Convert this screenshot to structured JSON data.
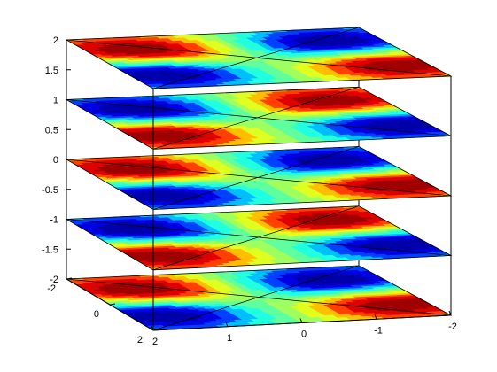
{
  "chart_data": {
    "type": "heatmap",
    "subtype": "stacked 3-D contour slices",
    "colormap": "jet",
    "colormap_stops": [
      "#00008f",
      "#0000ff",
      "#00ffff",
      "#7fff7f",
      "#ffff00",
      "#ff0000",
      "#7f0000"
    ],
    "grid": false,
    "box": true,
    "z_ticks": [
      {
        "value": 2,
        "label": "2"
      },
      {
        "value": 1.5,
        "label": "1.5"
      },
      {
        "value": 1,
        "label": "1"
      },
      {
        "value": 0.5,
        "label": "0.5"
      },
      {
        "value": 0,
        "label": "0"
      },
      {
        "value": -0.5,
        "label": "-0.5"
      },
      {
        "value": -1,
        "label": "-1"
      },
      {
        "value": -1.5,
        "label": "-1.5"
      },
      {
        "value": -2,
        "label": "-2"
      }
    ],
    "x_ticks": [
      {
        "value": 2,
        "label": "2"
      },
      {
        "value": 1,
        "label": "1"
      },
      {
        "value": 0,
        "label": "0"
      },
      {
        "value": -1,
        "label": "-1"
      },
      {
        "value": -2,
        "label": "-2"
      }
    ],
    "y_ticks": [
      {
        "value": -2,
        "label": "-2"
      },
      {
        "value": 0,
        "label": "0"
      },
      {
        "value": 2,
        "label": "2"
      }
    ],
    "xlim": [
      -2,
      2
    ],
    "ylim": [
      -2,
      2
    ],
    "zlim": [
      -2,
      2
    ],
    "slices": [
      {
        "z": 2,
        "polarity": -1
      },
      {
        "z": 1,
        "polarity": 1
      },
      {
        "z": 0,
        "polarity": -1
      },
      {
        "z": -1,
        "polarity": 1
      },
      {
        "z": -2,
        "polarity": -1
      }
    ]
  }
}
